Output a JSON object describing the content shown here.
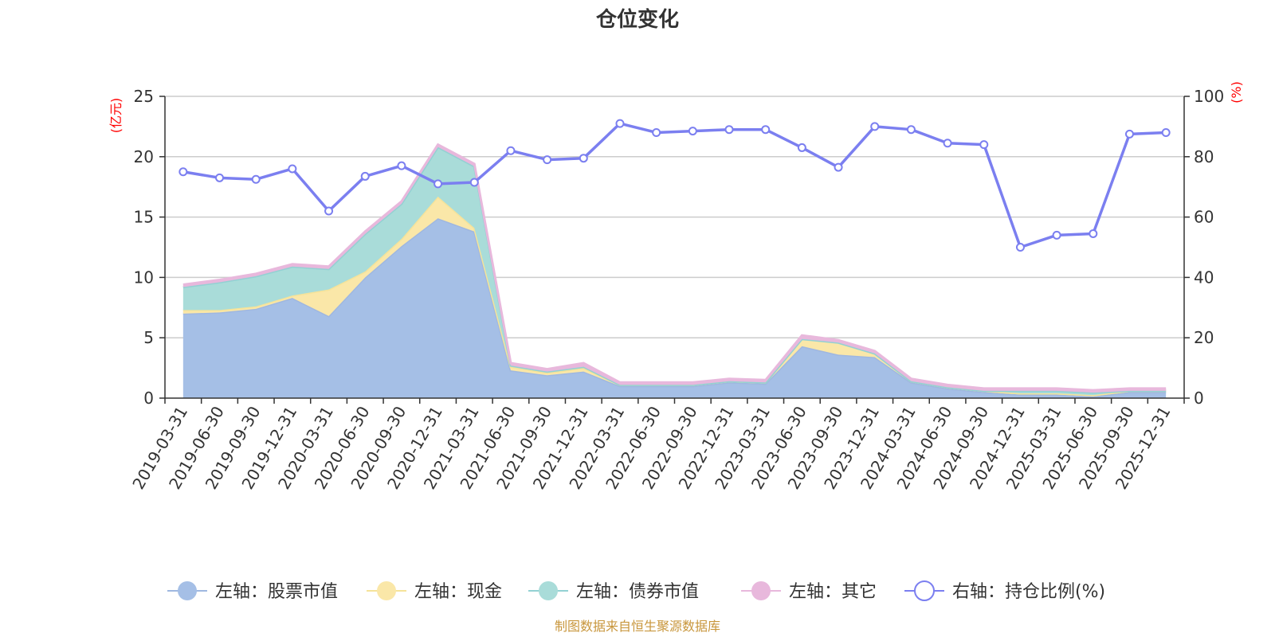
{
  "chart_data": {
    "type": "area",
    "title": "仓位变化",
    "left_unit": "(亿元)",
    "right_unit": "(%)",
    "ylim_left": [
      0,
      25
    ],
    "yticks_left": [
      "0",
      "5",
      "10",
      "15",
      "20",
      "25"
    ],
    "ylim_right": [
      0,
      100
    ],
    "yticks_right": [
      "0",
      "20",
      "40",
      "60",
      "80",
      "100"
    ],
    "categories": [
      "2019-03-31",
      "2019-06-30",
      "2019-09-30",
      "2019-12-31",
      "2020-03-31",
      "2020-06-30",
      "2020-09-30",
      "2020-12-31",
      "2021-03-31",
      "2021-06-30",
      "2021-09-30",
      "2021-12-31",
      "2022-03-31",
      "2022-06-30",
      "2022-09-30",
      "2022-12-31",
      "2023-03-31",
      "2023-06-30",
      "2023-09-30",
      "2023-12-31",
      "2024-03-31",
      "2024-06-30",
      "2024-09-30",
      "2024-12-31",
      "2025-03-31",
      "2025-06-30",
      "2025-09-30",
      "2025-12-31"
    ],
    "series": [
      {
        "name": "左轴：股票市值",
        "axis": "left",
        "color": "#a5bfe6",
        "line": "#9fb7e0",
        "values": [
          7.0,
          7.1,
          7.4,
          8.3,
          6.8,
          10.0,
          12.6,
          14.9,
          13.8,
          2.3,
          1.9,
          2.2,
          1.0,
          1.0,
          1.0,
          1.3,
          1.2,
          4.3,
          3.6,
          3.4,
          1.3,
          0.8,
          0.5,
          0.3,
          0.3,
          0.15,
          0.5,
          0.5
        ]
      },
      {
        "name": "左轴：现金",
        "axis": "left",
        "color": "#fae7a8",
        "line": "#f5e39a",
        "values": [
          0.3,
          0.2,
          0.2,
          0.2,
          2.2,
          0.5,
          0.6,
          1.8,
          0.3,
          0.3,
          0.2,
          0.3,
          0.1,
          0.1,
          0.1,
          0.1,
          0.1,
          0.6,
          1.0,
          0.3,
          0.1,
          0.1,
          0.1,
          0.1,
          0.1,
          0.1,
          0.1,
          0.1
        ]
      },
      {
        "name": "左轴：债券市值",
        "axis": "left",
        "color": "#a9dcd9",
        "line": "#93d1d3",
        "values": [
          1.9,
          2.3,
          2.5,
          2.4,
          1.7,
          3.1,
          2.9,
          4.1,
          5.1,
          0.1,
          0.1,
          0.1,
          0.0,
          0.0,
          0.0,
          0.0,
          0.0,
          0.0,
          0.0,
          0.0,
          0.0,
          0.0,
          0.0,
          0.2,
          0.2,
          0.2,
          0.0,
          0.0
        ]
      },
      {
        "name": "左轴：其它",
        "axis": "left",
        "color": "#e8b8dc",
        "line": "#e8b8dc",
        "values": [
          0.2,
          0.2,
          0.2,
          0.2,
          0.2,
          0.2,
          0.2,
          0.2,
          0.2,
          0.2,
          0.2,
          0.3,
          0.2,
          0.2,
          0.2,
          0.2,
          0.2,
          0.3,
          0.2,
          0.2,
          0.2,
          0.2,
          0.2,
          0.2,
          0.2,
          0.2,
          0.2,
          0.2
        ]
      },
      {
        "name": "右轴：持仓比例(%)",
        "axis": "right",
        "color": "#7b7ff0",
        "values": [
          75,
          73,
          72.5,
          76,
          62,
          73.5,
          77,
          71,
          71.5,
          82,
          79,
          79.5,
          91,
          88,
          88.5,
          89,
          89,
          83,
          76.5,
          90,
          89,
          84.5,
          84,
          50,
          54,
          54.5,
          87.5,
          88
        ]
      }
    ]
  },
  "source_note": "制图数据来自恒生聚源数据库"
}
